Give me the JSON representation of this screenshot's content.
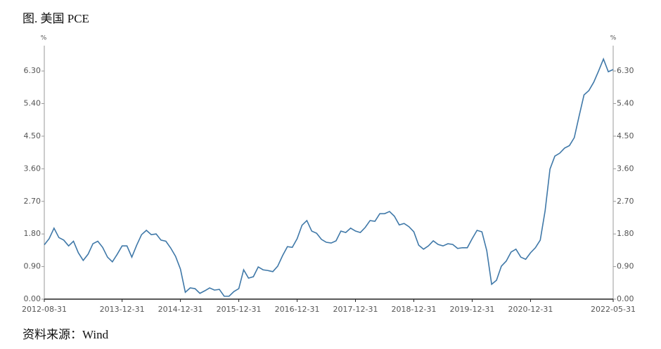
{
  "chart_data": {
    "type": "line",
    "title": "图. 美国 PCE",
    "source": "资料来源：Wind",
    "ylabel": "%",
    "y2label": "%",
    "categories": [
      "2012-08-31",
      null,
      null,
      null,
      null,
      null,
      null,
      null,
      null,
      null,
      null,
      null,
      null,
      null,
      null,
      null,
      "2013-12-31",
      null,
      null,
      null,
      null,
      null,
      null,
      null,
      null,
      null,
      null,
      null,
      "2014-12-31",
      null,
      null,
      null,
      null,
      null,
      null,
      null,
      null,
      null,
      null,
      null,
      "2015-12-31",
      null,
      null,
      null,
      null,
      null,
      null,
      null,
      null,
      null,
      null,
      null,
      "2016-12-31",
      null,
      null,
      null,
      null,
      null,
      null,
      null,
      null,
      null,
      null,
      null,
      "2017-12-31",
      null,
      null,
      null,
      null,
      null,
      null,
      null,
      null,
      null,
      null,
      null,
      "2018-12-31",
      null,
      null,
      null,
      null,
      null,
      null,
      null,
      null,
      null,
      null,
      null,
      "2019-12-31",
      null,
      null,
      null,
      null,
      null,
      null,
      null,
      null,
      null,
      null,
      null,
      "2020-12-31",
      null,
      null,
      null,
      null,
      null,
      null,
      null,
      null,
      null,
      null,
      null,
      null,
      null,
      null,
      null,
      null,
      "2022-05-31"
    ],
    "series": [
      {
        "name": "PCE",
        "color": "#3f78a8",
        "values": [
          1.5,
          1.67,
          1.96,
          1.7,
          1.63,
          1.47,
          1.6,
          1.28,
          1.07,
          1.24,
          1.53,
          1.6,
          1.43,
          1.16,
          1.03,
          1.24,
          1.47,
          1.47,
          1.16,
          1.49,
          1.78,
          1.9,
          1.78,
          1.8,
          1.63,
          1.6,
          1.41,
          1.18,
          0.83,
          0.19,
          0.31,
          0.29,
          0.16,
          0.23,
          0.31,
          0.25,
          0.27,
          0.08,
          0.08,
          0.21,
          0.29,
          0.81,
          0.58,
          0.62,
          0.89,
          0.81,
          0.79,
          0.76,
          0.91,
          1.2,
          1.45,
          1.43,
          1.67,
          2.04,
          2.17,
          1.88,
          1.82,
          1.65,
          1.57,
          1.55,
          1.61,
          1.88,
          1.84,
          1.96,
          1.88,
          1.84,
          1.98,
          2.17,
          2.15,
          2.36,
          2.36,
          2.42,
          2.29,
          2.05,
          2.09,
          2.0,
          1.86,
          1.49,
          1.38,
          1.47,
          1.61,
          1.51,
          1.47,
          1.53,
          1.51,
          1.4,
          1.42,
          1.42,
          1.67,
          1.9,
          1.86,
          1.34,
          0.41,
          0.52,
          0.91,
          1.05,
          1.3,
          1.38,
          1.16,
          1.1,
          1.28,
          1.42,
          1.63,
          2.44,
          3.59,
          3.95,
          4.03,
          4.17,
          4.24,
          4.46,
          5.06,
          5.64,
          5.76,
          5.99,
          6.3,
          6.63,
          6.28,
          6.34
        ]
      }
    ],
    "ylim": [
      0,
      7
    ],
    "y2lim": [
      0,
      7
    ],
    "yticks": [
      {
        "value": 0,
        "label": "0.00"
      },
      {
        "value": 0.9,
        "label": "0.90"
      },
      {
        "value": 1.8,
        "label": "1.80"
      },
      {
        "value": 2.7,
        "label": "2.70"
      },
      {
        "value": 3.6,
        "label": "3.60"
      },
      {
        "value": 4.5,
        "label": "4.50"
      },
      {
        "value": 5.4,
        "label": "5.40"
      },
      {
        "value": 6.3,
        "label": "6.30"
      }
    ],
    "y2ticks": [
      {
        "value": 0,
        "label": "0.00"
      },
      {
        "value": 0.9,
        "label": "0.90"
      },
      {
        "value": 1.8,
        "label": "1.80"
      },
      {
        "value": 2.7,
        "label": "2.70"
      },
      {
        "value": 3.6,
        "label": "3.60"
      },
      {
        "value": 4.5,
        "label": "4.50"
      },
      {
        "value": 5.4,
        "label": "5.40"
      },
      {
        "value": 6.3,
        "label": "6.30"
      }
    ]
  }
}
